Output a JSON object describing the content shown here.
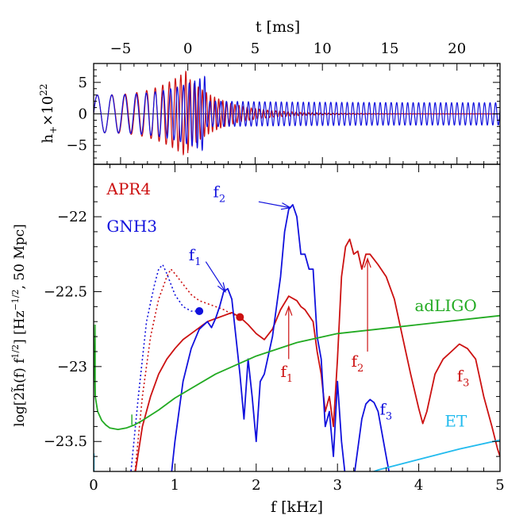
{
  "chart_data": [
    {
      "type": "line",
      "xlabel": "t [ms]",
      "ylabel": "h",
      "ylabel_sub": "+",
      "ylabel_times": "×10",
      "ylabel_exp": "22",
      "xlim": [
        -7.0,
        23.2
      ],
      "ylim": [
        -8,
        8
      ],
      "xticks": [
        -5,
        0,
        5,
        10,
        15,
        20
      ],
      "xticklabels": [
        "−5",
        "0",
        "5",
        "10",
        "15",
        "20"
      ],
      "yticks": [
        -5,
        0,
        5
      ],
      "yticklabels": [
        "−5",
        "0",
        "5"
      ],
      "series": [
        {
          "name": "APR4",
          "color": "#cc1111",
          "merger_t": 0.0,
          "inspiral_amp": [
            3,
            7
          ],
          "post_amp": 5.5,
          "post_freq_kHz": 3.3,
          "decay_ms": 2.5
        },
        {
          "name": "GNH3",
          "color": "#1111dd",
          "merger_t": 1.3,
          "inspiral_amp": [
            3,
            6
          ],
          "post_amp": 1.8,
          "post_freq_kHz": 2.45,
          "decay_ms": 1000
        }
      ]
    },
    {
      "type": "line",
      "xlabel": "f [kHz]",
      "ylabel": "log[2h̃(f) f^1/2] [Hz^-1/2, 50 Mpc]",
      "xlim": [
        0,
        5
      ],
      "ylim": [
        -23.7,
        -21.65
      ],
      "xticks": [
        0,
        1,
        2,
        3,
        4,
        5
      ],
      "xticklabels": [
        "0",
        "1",
        "2",
        "3",
        "4",
        "5"
      ],
      "yticks": [
        -22,
        -22.5,
        -23,
        -23.5
      ],
      "yticklabels": [
        "−22",
        "−22.5",
        "−23",
        "−23.5"
      ],
      "series": [
        {
          "name": "APR4",
          "color": "#cc1111",
          "x": [
            0.0,
            0.5,
            0.6,
            0.7,
            0.8,
            0.9,
            1.0,
            1.1,
            1.2,
            1.3,
            1.4,
            1.5,
            1.6,
            1.7,
            1.8,
            1.9,
            2.0,
            2.1,
            2.2,
            2.3,
            2.4,
            2.5,
            2.55,
            2.6,
            2.7,
            2.75,
            2.8,
            2.85,
            2.9,
            2.95,
            3.0,
            3.05,
            3.1,
            3.15,
            3.2,
            3.25,
            3.3,
            3.35,
            3.4,
            3.5,
            3.6,
            3.7,
            3.8,
            3.9,
            4.0,
            4.05,
            4.1,
            4.2,
            4.3,
            4.4,
            4.5,
            4.6,
            4.7,
            4.8,
            4.9,
            4.97,
            5.0
          ],
          "y": [
            -23.75,
            -23.75,
            -23.4,
            -23.2,
            -23.05,
            -22.95,
            -22.88,
            -22.82,
            -22.78,
            -22.74,
            -22.7,
            -22.68,
            -22.66,
            -22.64,
            -22.67,
            -22.72,
            -22.78,
            -22.82,
            -22.75,
            -22.62,
            -22.53,
            -22.56,
            -22.6,
            -22.62,
            -22.7,
            -22.9,
            -23.05,
            -23.3,
            -23.2,
            -23.4,
            -22.95,
            -22.4,
            -22.2,
            -22.15,
            -22.25,
            -22.23,
            -22.35,
            -22.25,
            -22.25,
            -22.32,
            -22.4,
            -22.55,
            -22.8,
            -23.05,
            -23.28,
            -23.38,
            -23.3,
            -23.05,
            -22.95,
            -22.9,
            -22.85,
            -22.88,
            -22.95,
            -23.2,
            -23.4,
            -23.55,
            -23.6
          ]
        },
        {
          "name": "APR4 inspiral",
          "color": "#cc1111",
          "style": "dotted",
          "x": [
            0.5,
            0.6,
            0.7,
            0.8,
            0.9,
            0.95,
            1.0,
            1.1,
            1.2,
            1.3,
            1.4,
            1.5,
            1.6,
            1.7,
            1.8
          ],
          "y": [
            -23.75,
            -23.2,
            -22.8,
            -22.55,
            -22.4,
            -22.35,
            -22.38,
            -22.45,
            -22.52,
            -22.56,
            -22.58,
            -22.6,
            -22.62,
            -22.65,
            -22.67
          ]
        },
        {
          "name": "GNH3",
          "color": "#1111dd",
          "x": [
            0.95,
            1.0,
            1.1,
            1.2,
            1.3,
            1.4,
            1.45,
            1.5,
            1.55,
            1.6,
            1.65,
            1.7,
            1.75,
            1.8,
            1.85,
            1.9,
            1.95,
            2.0,
            2.05,
            2.1,
            2.2,
            2.3,
            2.35,
            2.4,
            2.45,
            2.5,
            2.55,
            2.6,
            2.65,
            2.7,
            2.75,
            2.8,
            2.85,
            2.9,
            2.95,
            3.0,
            3.05,
            3.1
          ],
          "y": [
            -23.75,
            -23.5,
            -23.1,
            -22.88,
            -22.75,
            -22.7,
            -22.74,
            -22.68,
            -22.6,
            -22.5,
            -22.48,
            -22.55,
            -22.8,
            -23.05,
            -23.35,
            -22.95,
            -23.2,
            -23.5,
            -23.1,
            -23.05,
            -22.8,
            -22.4,
            -22.1,
            -21.95,
            -21.92,
            -22.0,
            -22.25,
            -22.25,
            -22.35,
            -22.35,
            -22.8,
            -22.95,
            -23.4,
            -23.3,
            -23.6,
            -23.1,
            -23.5,
            -23.75
          ]
        },
        {
          "name": "GNH3 inspiral",
          "color": "#1111dd",
          "style": "dotted",
          "x": [
            0.45,
            0.55,
            0.65,
            0.75,
            0.8,
            0.85,
            0.9,
            1.0,
            1.1,
            1.2,
            1.3
          ],
          "y": [
            -23.75,
            -23.2,
            -22.7,
            -22.45,
            -22.35,
            -22.32,
            -22.38,
            -22.52,
            -22.6,
            -22.63,
            -22.63
          ]
        },
        {
          "name": "GNH3 f3 peak",
          "color": "#1111dd",
          "x": [
            3.2,
            3.25,
            3.3,
            3.35,
            3.4,
            3.45,
            3.5,
            3.55,
            3.6,
            3.65
          ],
          "y": [
            -23.75,
            -23.55,
            -23.35,
            -23.25,
            -23.22,
            -23.24,
            -23.3,
            -23.45,
            -23.6,
            -23.75
          ]
        },
        {
          "name": "adLIGO",
          "color": "#22aa22",
          "x": [
            0.0,
            0.02,
            0.05,
            0.1,
            0.15,
            0.2,
            0.3,
            0.4,
            0.5,
            0.6,
            0.8,
            1.0,
            1.5,
            2.0,
            2.5,
            3.0,
            3.5,
            4.0,
            4.5,
            5.0
          ],
          "y": [
            -22.72,
            -23.2,
            -23.3,
            -23.36,
            -23.39,
            -23.41,
            -23.42,
            -23.41,
            -23.39,
            -23.36,
            -23.29,
            -23.21,
            -23.05,
            -22.93,
            -22.84,
            -22.78,
            -22.75,
            -22.72,
            -22.69,
            -22.66
          ]
        },
        {
          "name": "ET",
          "color": "#22bbee",
          "x": [
            3.2,
            3.5,
            4.0,
            4.5,
            5.0
          ],
          "y": [
            -23.75,
            -23.69,
            -23.62,
            -23.55,
            -23.49
          ]
        }
      ],
      "merger_points": [
        {
          "series": "GNH3",
          "x": 1.3,
          "y": -22.63,
          "color": "#1111dd"
        },
        {
          "series": "APR4",
          "x": 1.8,
          "y": -22.67,
          "color": "#cc1111"
        }
      ],
      "annotations": [
        {
          "text": "APR4",
          "color": "#cc1111",
          "x": 0.16,
          "y": -21.85
        },
        {
          "text": "GNH3",
          "color": "#1111dd",
          "x": 0.16,
          "y": -22.1
        },
        {
          "text": "adLIGO",
          "color": "#22aa22",
          "x": 3.95,
          "y": -22.63
        },
        {
          "text": "ET",
          "color": "#22bbee",
          "x": 4.32,
          "y": -23.4
        },
        {
          "text": "f",
          "sub": "1",
          "color": "#1111dd",
          "x": 1.17,
          "y": -22.29
        },
        {
          "text": "f",
          "sub": "2",
          "color": "#1111dd",
          "x": 1.47,
          "y": -21.87
        },
        {
          "text": "f",
          "sub": "3",
          "color": "#1111dd",
          "x": 3.52,
          "y": -23.32
        },
        {
          "text": "f",
          "sub": "1",
          "color": "#cc1111",
          "x": 2.3,
          "y": -23.07
        },
        {
          "text": "f",
          "sub": "2",
          "color": "#cc1111",
          "x": 3.17,
          "y": -23.0
        },
        {
          "text": "f",
          "sub": "3",
          "color": "#cc1111",
          "x": 4.47,
          "y": -23.1
        }
      ],
      "arrows": [
        {
          "color": "#1111dd",
          "from": [
            1.38,
            -22.3
          ],
          "to": [
            1.62,
            -22.5
          ]
        },
        {
          "color": "#1111dd",
          "from": [
            2.03,
            -21.9
          ],
          "to": [
            2.42,
            -21.94
          ]
        },
        {
          "color": "#cc1111",
          "from": [
            2.4,
            -22.95
          ],
          "to": [
            2.4,
            -22.6
          ]
        },
        {
          "color": "#cc1111",
          "from": [
            3.37,
            -22.9
          ],
          "to": [
            3.37,
            -22.28
          ]
        }
      ]
    }
  ]
}
